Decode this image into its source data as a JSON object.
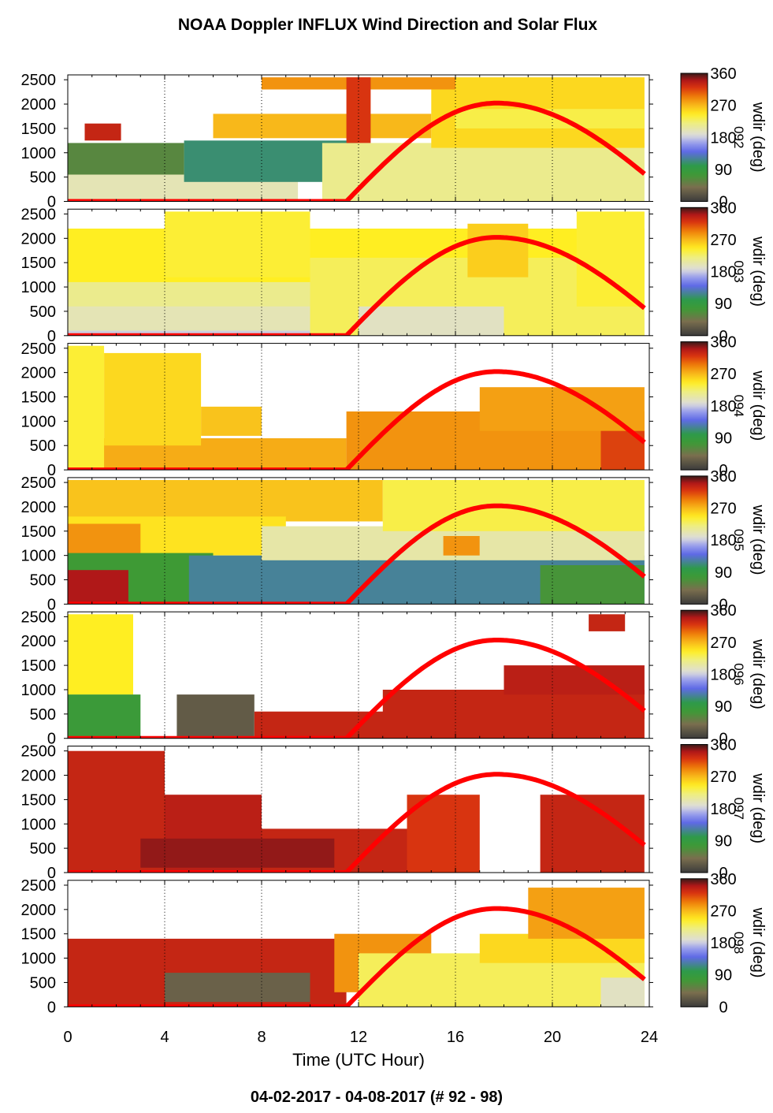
{
  "chart_data": {
    "type": "heatmap",
    "title": "NOAA Doppler INFLUX Wind Direction and Solar Flux",
    "footer": "04-02-2017 - 04-08-2017   (# 92 - 98)",
    "xlabel": "Time (UTC Hour)",
    "xlim": [
      0,
      24
    ],
    "xticks": [
      0,
      4,
      8,
      12,
      16,
      20,
      24
    ],
    "ylim": [
      0,
      2600
    ],
    "yticks": [
      0,
      500,
      1000,
      1500,
      2000,
      2500
    ],
    "colorbar": {
      "label": "wdir (deg)",
      "ticks": [
        0,
        90,
        180,
        270,
        360
      ],
      "range": [
        0,
        360
      ]
    },
    "solar_curve": {
      "color": "#ff0000",
      "rise_hour": 11.5,
      "peak_hour": 17.7,
      "end_hour": 23.8,
      "peak_value": 2020
    },
    "panels": [
      {
        "day": "092",
        "regions": [
          {
            "x": [
              0,
              4.8
            ],
            "y": [
              0,
              1200
            ],
            "dir": 60
          },
          {
            "x": [
              0,
              9.5
            ],
            "y": [
              0,
              550
            ],
            "dir": 200
          },
          {
            "x": [
              4.8,
              12
            ],
            "y": [
              400,
              1250
            ],
            "dir": 110
          },
          {
            "x": [
              10.5,
              23.8
            ],
            "y": [
              0,
              1200
            ],
            "dir": 215
          },
          {
            "x": [
              15,
              23.8
            ],
            "y": [
              1100,
              2550
            ],
            "dir": 255
          },
          {
            "x": [
              16,
              23.8
            ],
            "y": [
              1500,
              1900
            ],
            "dir": 235
          },
          {
            "x": [
              6,
              15
            ],
            "y": [
              1300,
              1800
            ],
            "dir": 270
          },
          {
            "x": [
              8,
              16
            ],
            "y": [
              2300,
              2550
            ],
            "dir": 285
          },
          {
            "x": [
              11.5,
              12.5
            ],
            "y": [
              1200,
              2550
            ],
            "dir": 320
          },
          {
            "x": [
              0.7,
              2.2
            ],
            "y": [
              1250,
              1600
            ],
            "dir": 330
          }
        ]
      },
      {
        "day": "093",
        "regions": [
          {
            "x": [
              0,
              23.8
            ],
            "y": [
              0,
              350
            ],
            "dir": 180
          },
          {
            "x": [
              0,
              11
            ],
            "y": [
              100,
              800
            ],
            "dir": 200
          },
          {
            "x": [
              0,
              10
            ],
            "y": [
              600,
              1200
            ],
            "dir": 215
          },
          {
            "x": [
              0,
              23.8
            ],
            "y": [
              1100,
              2200
            ],
            "dir": 245
          },
          {
            "x": [
              4,
              10
            ],
            "y": [
              1200,
              2550
            ],
            "dir": 240
          },
          {
            "x": [
              10,
              23.8
            ],
            "y": [
              0,
              1600
            ],
            "dir": 230
          },
          {
            "x": [
              12,
              18
            ],
            "y": [
              0,
              600
            ],
            "dir": 195
          },
          {
            "x": [
              16.5,
              19
            ],
            "y": [
              1200,
              2300
            ],
            "dir": 260
          },
          {
            "x": [
              21,
              23.8
            ],
            "y": [
              600,
              2550
            ],
            "dir": 240
          }
        ]
      },
      {
        "day": "094",
        "regions": [
          {
            "x": [
              0,
              11.5
            ],
            "y": [
              0,
              650
            ],
            "dir": 275
          },
          {
            "x": [
              0,
              1.5
            ],
            "y": [
              0,
              2550
            ],
            "dir": 240
          },
          {
            "x": [
              1.5,
              5.5
            ],
            "y": [
              500,
              2400
            ],
            "dir": 255
          },
          {
            "x": [
              5.5,
              8
            ],
            "y": [
              700,
              1300
            ],
            "dir": 265
          },
          {
            "x": [
              11.5,
              23.8
            ],
            "y": [
              0,
              1200
            ],
            "dir": 285
          },
          {
            "x": [
              17,
              23.8
            ],
            "y": [
              800,
              1700
            ],
            "dir": 280
          },
          {
            "x": [
              22,
              23.8
            ],
            "y": [
              0,
              800
            ],
            "dir": 315
          }
        ]
      },
      {
        "day": "095",
        "regions": [
          {
            "x": [
              0,
              13
            ],
            "y": [
              1700,
              2550
            ],
            "dir": 265
          },
          {
            "x": [
              0,
              9
            ],
            "y": [
              1000,
              1800
            ],
            "dir": 250
          },
          {
            "x": [
              0,
              3
            ],
            "y": [
              1000,
              1650
            ],
            "dir": 285
          },
          {
            "x": [
              0,
              6
            ],
            "y": [
              0,
              1050
            ],
            "dir": 75
          },
          {
            "x": [
              0,
              2.5
            ],
            "y": [
              0,
              700
            ],
            "dir": 340
          },
          {
            "x": [
              5,
              23.8
            ],
            "y": [
              0,
              1000
            ],
            "dir": 120
          },
          {
            "x": [
              8,
              23.8
            ],
            "y": [
              900,
              1600
            ],
            "dir": 205
          },
          {
            "x": [
              13,
              23.8
            ],
            "y": [
              1500,
              2550
            ],
            "dir": 235
          },
          {
            "x": [
              19.5,
              23.8
            ],
            "y": [
              0,
              800
            ],
            "dir": 70
          },
          {
            "x": [
              15.5,
              17
            ],
            "y": [
              1000,
              1400
            ],
            "dir": 285
          }
        ]
      },
      {
        "day": "096",
        "regions": [
          {
            "x": [
              0,
              2.7
            ],
            "y": [
              900,
              2550
            ],
            "dir": 245
          },
          {
            "x": [
              0,
              3
            ],
            "y": [
              0,
              900
            ],
            "dir": 80
          },
          {
            "x": [
              4.5,
              7.7
            ],
            "y": [
              0,
              900
            ],
            "dir": 25
          },
          {
            "x": [
              7.7,
              23.8
            ],
            "y": [
              0,
              550
            ],
            "dir": 330
          },
          {
            "x": [
              13,
              23.8
            ],
            "y": [
              400,
              1000
            ],
            "dir": 330
          },
          {
            "x": [
              18,
              23.8
            ],
            "y": [
              900,
              1500
            ],
            "dir": 335
          },
          {
            "x": [
              21.5,
              23
            ],
            "y": [
              2200,
              2550
            ],
            "dir": 330
          }
        ]
      },
      {
        "day": "097",
        "regions": [
          {
            "x": [
              0,
              4
            ],
            "y": [
              800,
              2500
            ],
            "dir": 330
          },
          {
            "x": [
              0,
              14
            ],
            "y": [
              0,
              900
            ],
            "dir": 330
          },
          {
            "x": [
              4,
              8
            ],
            "y": [
              0,
              1600
            ],
            "dir": 335
          },
          {
            "x": [
              3,
              11
            ],
            "y": [
              100,
              700
            ],
            "dir": 345
          },
          {
            "x": [
              14,
              17
            ],
            "y": [
              0,
              1600
            ],
            "dir": 320
          },
          {
            "x": [
              19.5,
              23.8
            ],
            "y": [
              0,
              1600
            ],
            "dir": 330
          }
        ]
      },
      {
        "day": "098",
        "regions": [
          {
            "x": [
              0,
              11.5
            ],
            "y": [
              0,
              1400
            ],
            "dir": 330
          },
          {
            "x": [
              4,
              10
            ],
            "y": [
              100,
              700
            ],
            "dir": 30
          },
          {
            "x": [
              11,
              15
            ],
            "y": [
              300,
              1500
            ],
            "dir": 285
          },
          {
            "x": [
              12,
              23.8
            ],
            "y": [
              0,
              1100
            ],
            "dir": 230
          },
          {
            "x": [
              17,
              23.8
            ],
            "y": [
              900,
              1500
            ],
            "dir": 255
          },
          {
            "x": [
              19,
              23.8
            ],
            "y": [
              1400,
              2450
            ],
            "dir": 280
          },
          {
            "x": [
              22,
              23.8
            ],
            "y": [
              0,
              600
            ],
            "dir": 195
          }
        ]
      }
    ]
  }
}
